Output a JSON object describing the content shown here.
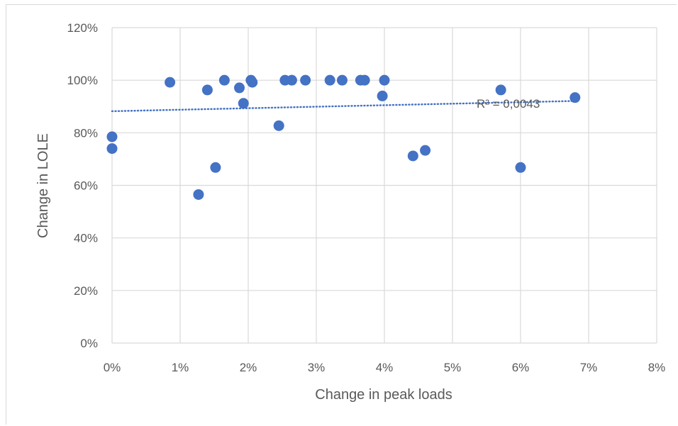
{
  "chart_data": {
    "type": "scatter",
    "xlabel": "Change in peak loads",
    "ylabel": "Change in LOLE",
    "xlim": [
      0,
      0.08
    ],
    "ylim": [
      0,
      1.2
    ],
    "x_ticks": [
      "0%",
      "1%",
      "2%",
      "3%",
      "4%",
      "5%",
      "6%",
      "7%",
      "8%"
    ],
    "y_ticks": [
      "0%",
      "20%",
      "40%",
      "60%",
      "80%",
      "100%",
      "120%"
    ],
    "grid": true,
    "marker_color": "#4472c4",
    "trendline": {
      "type": "linear",
      "style": "dotted",
      "color": "#4472c4",
      "y_start": 0.882,
      "y_end": 0.921,
      "x_start": 0,
      "x_end": 0.068,
      "label": "R² = 0,0043"
    },
    "points": [
      {
        "x": 0.0,
        "y": 0.785
      },
      {
        "x": 0.0,
        "y": 0.74
      },
      {
        "x": 0.0085,
        "y": 0.992
      },
      {
        "x": 0.0127,
        "y": 0.565
      },
      {
        "x": 0.014,
        "y": 0.963
      },
      {
        "x": 0.0152,
        "y": 0.668
      },
      {
        "x": 0.0165,
        "y": 1.0
      },
      {
        "x": 0.0187,
        "y": 0.971
      },
      {
        "x": 0.0193,
        "y": 0.912
      },
      {
        "x": 0.0204,
        "y": 1.0
      },
      {
        "x": 0.0206,
        "y": 0.992
      },
      {
        "x": 0.0245,
        "y": 0.827
      },
      {
        "x": 0.0254,
        "y": 1.0
      },
      {
        "x": 0.0264,
        "y": 1.0
      },
      {
        "x": 0.0284,
        "y": 1.0
      },
      {
        "x": 0.032,
        "y": 1.0
      },
      {
        "x": 0.0338,
        "y": 1.0
      },
      {
        "x": 0.0365,
        "y": 1.0
      },
      {
        "x": 0.0371,
        "y": 1.0
      },
      {
        "x": 0.0397,
        "y": 0.94
      },
      {
        "x": 0.04,
        "y": 1.0
      },
      {
        "x": 0.0442,
        "y": 0.712
      },
      {
        "x": 0.046,
        "y": 0.733
      },
      {
        "x": 0.0571,
        "y": 0.963
      },
      {
        "x": 0.06,
        "y": 0.668
      },
      {
        "x": 0.068,
        "y": 0.934
      }
    ]
  }
}
